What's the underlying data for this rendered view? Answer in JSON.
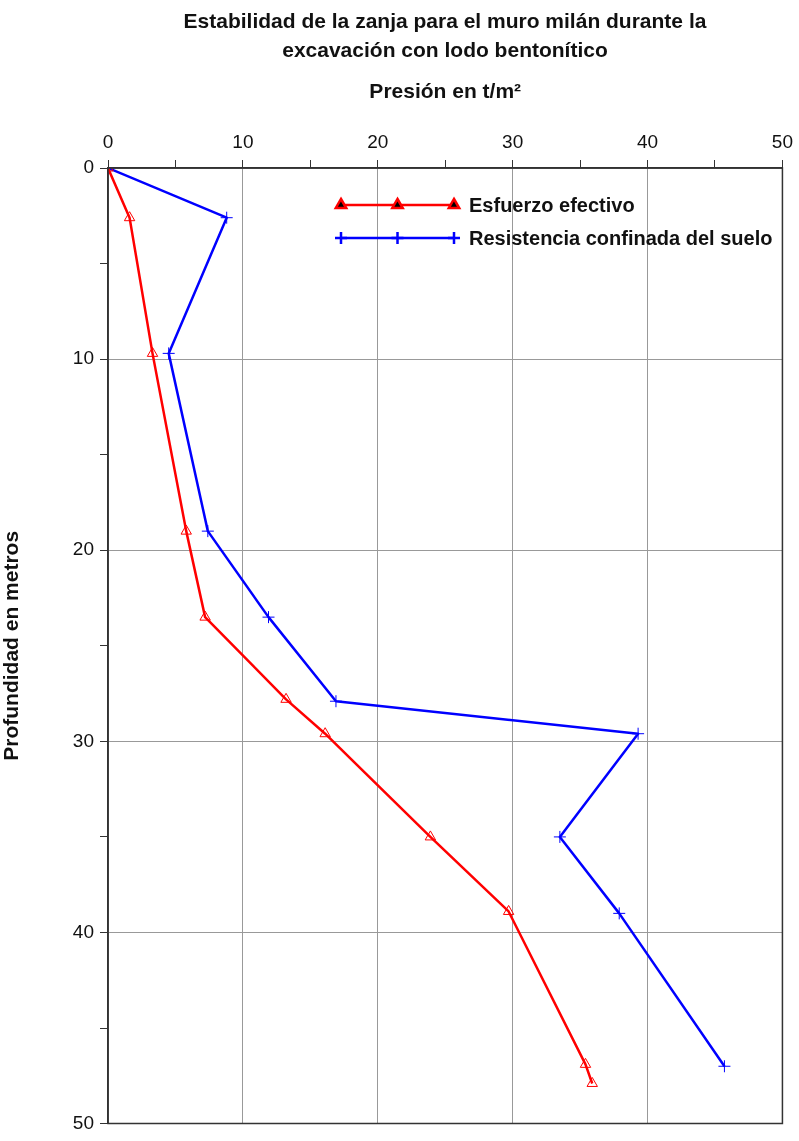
{
  "chart_data": {
    "type": "line",
    "title": "Estabilidad de la zanja para el muro milán durante la excavación con lodo bentonítico",
    "xlabel": "Presión en t/m²",
    "ylabel": "Profundidad en metros",
    "series": [
      {
        "name": "Esfuerzo efectivo",
        "color": "#ff0000",
        "marker": "triangle",
        "x": [
          0,
          1.6,
          3.3,
          5.8,
          7.2,
          13.2,
          16.1,
          23.9,
          29.7,
          35.4,
          35.9
        ],
        "values": [
          0,
          2.6,
          9.7,
          19.0,
          23.5,
          27.8,
          29.6,
          35.0,
          38.9,
          46.9,
          47.9
        ]
      },
      {
        "name": "Resistencia confinada del suelo",
        "color": "#0000ff",
        "marker": "cross",
        "x": [
          0,
          8.8,
          4.5,
          7.4,
          11.9,
          16.9,
          39.3,
          33.5,
          37.9,
          45.7
        ],
        "values": [
          0,
          2.6,
          9.7,
          19.0,
          23.5,
          27.9,
          29.6,
          35.0,
          39.0,
          47.0
        ]
      }
    ],
    "xlim": [
      0,
      50
    ],
    "xticks": [
      0,
      {
        "value": 5,
        "label": null
      },
      10,
      {
        "value": 15,
        "label": null
      },
      20,
      {
        "value": 25,
        "label": null
      },
      30,
      {
        "value": 35,
        "label": null
      },
      40,
      {
        "value": 45,
        "label": null
      },
      50
    ],
    "ylim": [
      50,
      0
    ],
    "yticks": [
      0,
      {
        "value": 5,
        "label": null
      },
      10,
      {
        "value": 15,
        "label": null
      },
      20,
      {
        "value": 25,
        "label": null
      },
      30,
      {
        "value": 35,
        "label": null
      },
      40,
      {
        "value": 45,
        "label": null
      },
      50
    ],
    "grid": true,
    "legend": "top right",
    "line_style": "solid"
  }
}
